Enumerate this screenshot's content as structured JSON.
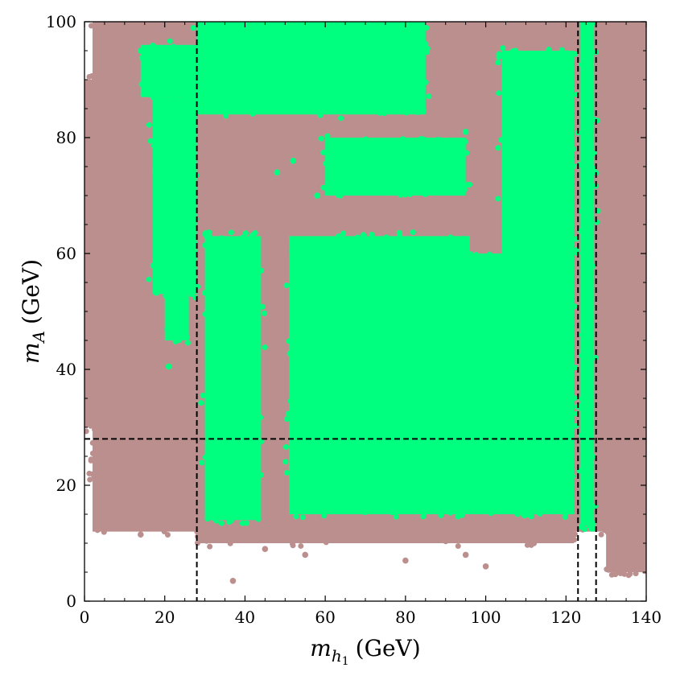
{
  "chart_data": {
    "type": "scatter",
    "xlabel": {
      "symbol": "m",
      "subscript": "h",
      "subsub": "1",
      "unit": "(GeV)"
    },
    "ylabel": {
      "symbol": "m",
      "subscript": "A",
      "unit": "(GeV)"
    },
    "xlim": [
      0,
      140
    ],
    "ylim": [
      0,
      100
    ],
    "x_ticks": [
      0,
      20,
      40,
      60,
      80,
      100,
      120,
      140
    ],
    "y_ticks": [
      0,
      20,
      40,
      60,
      80,
      100
    ],
    "x_tick_labels": [
      "0",
      "20",
      "40",
      "60",
      "80",
      "100",
      "120",
      "140"
    ],
    "y_tick_labels": [
      "0",
      "20",
      "40",
      "60",
      "80",
      "100"
    ],
    "grid": false,
    "colors": {
      "background_points": "#bc8f8f",
      "allowed_points": "#00ff7f",
      "reference_lines": "#000000"
    },
    "reference_lines": {
      "vertical_x": [
        28,
        123,
        127.5
      ],
      "horizontal_y": [
        28
      ],
      "style": "dashed"
    },
    "series": [
      {
        "color": "#bc8f8f",
        "regions": [
          {
            "x": [
              2,
              140
            ],
            "y": [
              12,
              100
            ]
          },
          {
            "x": [
              0,
              10
            ],
            "y": [
              30,
              90
            ]
          },
          {
            "x": [
              130,
              140
            ],
            "y": [
              5,
              100
            ]
          },
          {
            "x": [
              28,
              122
            ],
            "y": [
              65,
              83
            ]
          },
          {
            "x": [
              28,
              122
            ],
            "y": [
              10,
              28
            ]
          }
        ],
        "scatter_points": [
          [
            37,
            3.5
          ],
          [
            45,
            9
          ],
          [
            55,
            8
          ],
          [
            80,
            7
          ],
          [
            100,
            6
          ],
          [
            95,
            8
          ],
          [
            112,
            10
          ],
          [
            5,
            18
          ],
          [
            14,
            11.5
          ],
          [
            4,
            35
          ],
          [
            2,
            60
          ],
          [
            6,
            75
          ],
          [
            20,
            98
          ],
          [
            96,
            96
          ],
          [
            140,
            10.5
          ]
        ]
      },
      {
        "color": "#00ff7f",
        "regions": [
          {
            "x": [
              30,
              44
            ],
            "y": [
              14,
              63
            ]
          },
          {
            "x": [
              51,
              96
            ],
            "y": [
              15,
              63
            ]
          },
          {
            "x": [
              96,
              122
            ],
            "y": [
              15,
              60
            ]
          },
          {
            "x": [
              17,
              28
            ],
            "y": [
              53,
              87
            ]
          },
          {
            "x": [
              20,
              26
            ],
            "y": [
              45,
              60
            ]
          },
          {
            "x": [
              28,
              85
            ],
            "y": [
              84,
              100
            ]
          },
          {
            "x": [
              14,
              30
            ],
            "y": [
              87,
              96
            ]
          },
          {
            "x": [
              104,
              122
            ],
            "y": [
              60,
              95
            ]
          },
          {
            "x": [
              123.5,
              127
            ],
            "y": [
              13,
              100
            ]
          },
          {
            "x": [
              60,
              95
            ],
            "y": [
              70,
              80
            ]
          }
        ],
        "scatter_points": [
          [
            14,
            95
          ],
          [
            21,
            40.5
          ],
          [
            84,
            79
          ],
          [
            95,
            81
          ],
          [
            105,
            87
          ],
          [
            112,
            79
          ],
          [
            92,
            75
          ],
          [
            73,
            72
          ],
          [
            67,
            75
          ],
          [
            58,
            70
          ],
          [
            48,
            74
          ],
          [
            52,
            76
          ]
        ]
      }
    ]
  }
}
